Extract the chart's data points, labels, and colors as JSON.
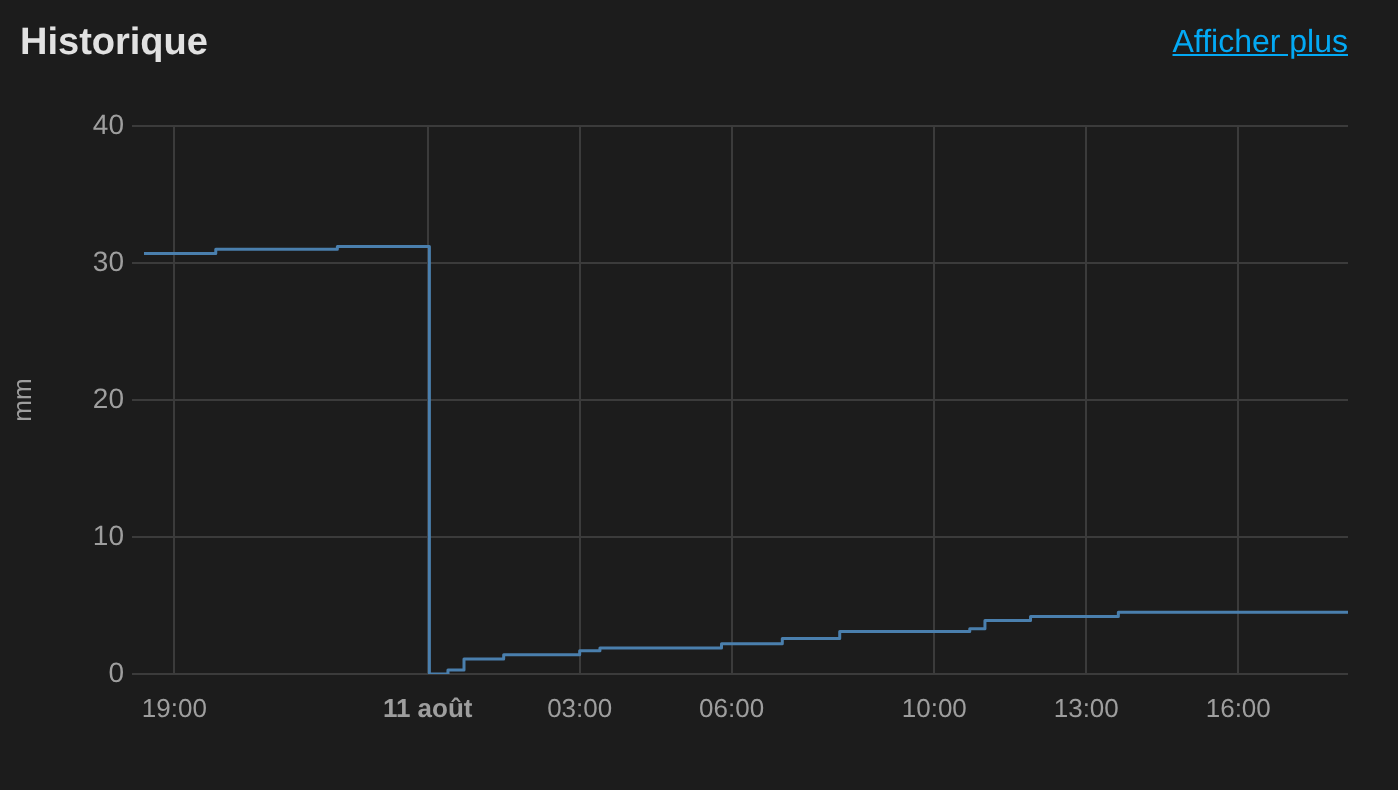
{
  "chart_data": {
    "type": "step",
    "title": "Historique",
    "ylabel": "mm",
    "annotations": [
      "Afficher plus"
    ],
    "x": [
      "--08-10T18:24",
      "--08-10T19:49",
      "--08-10T22:13",
      "--08-10T23:55",
      "--08-11T00:02",
      "--08-11T00:24",
      "--08-11T00:43",
      "--08-11T01:30",
      "--08-11T03:00",
      "--08-11T03:24",
      "--08-11T05:48",
      "--08-11T07:00",
      "--08-11T08:08",
      "--08-11T10:42",
      "--08-11T11:00",
      "--08-11T11:54",
      "--08-11T13:38",
      "--08-11T18:10"
    ],
    "series": [
      {
        "color": "#4a7fad",
        "values": [
          30.7,
          31.0,
          31.2,
          31.2,
          0,
          0.3,
          1.1,
          1.4,
          1.7,
          1.9,
          2.2,
          2.6,
          3.1,
          3.3,
          3.9,
          4.2,
          4.5,
          4.5
        ]
      }
    ],
    "xlim": [
      "--08-10T18:24",
      "--08-11T18:10"
    ],
    "xticks": [
      {
        "value": "--08-10T19:00",
        "label": "19:00"
      },
      {
        "value": "--08-11T00:00",
        "label": "11 août"
      },
      {
        "value": "--08-11T03:00",
        "label": "03:00"
      },
      {
        "value": "--08-11T06:00",
        "label": "06:00"
      },
      {
        "value": "--08-11T10:00",
        "label": "10:00"
      },
      {
        "value": "--08-11T13:00",
        "label": "13:00"
      },
      {
        "value": "--08-11T16:00",
        "label": "16:00"
      }
    ],
    "ylim": [
      0,
      40
    ],
    "yticks": [
      0,
      10,
      20,
      30,
      40
    ],
    "grid": true,
    "legend": false,
    "marker": "none",
    "line_style": "solid"
  }
}
